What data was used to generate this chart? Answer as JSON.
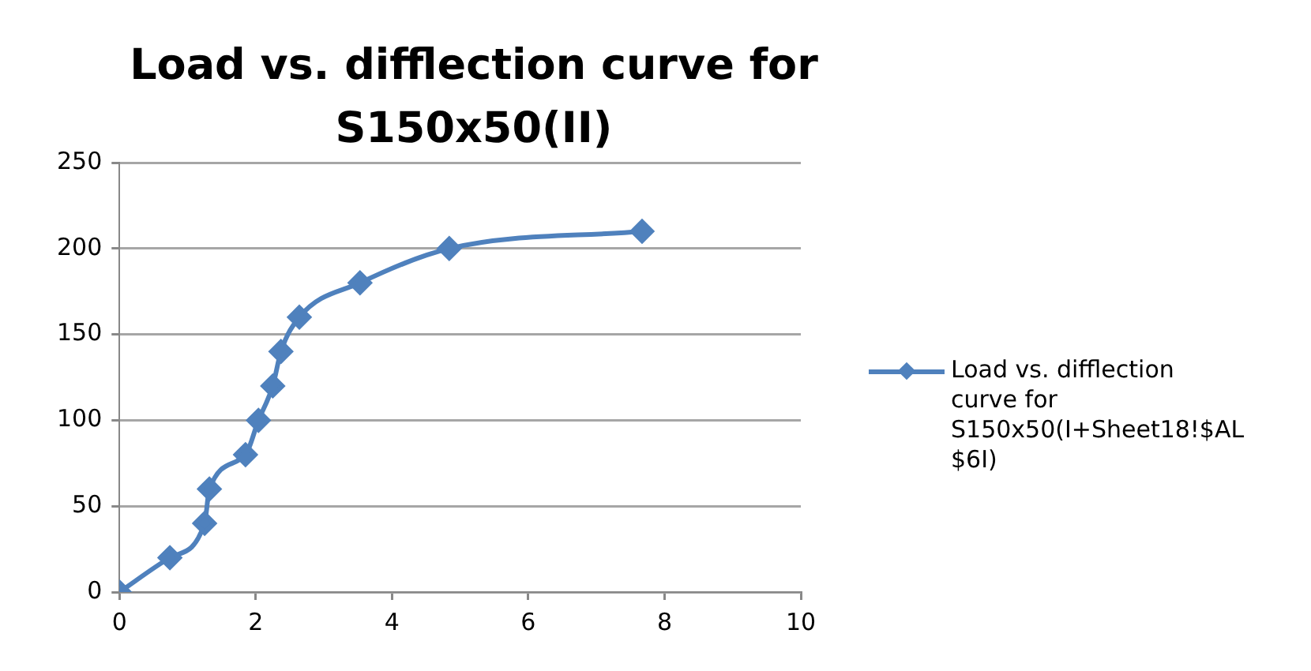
{
  "chart_data": {
    "type": "line",
    "title": "Load vs. difflection curve for S150x50(II)",
    "series": [
      {
        "name": "Load vs. difflection curve for S150x50(I+Sheet18!$AL$6I)",
        "color": "#4f81bd",
        "x": [
          0,
          0.74,
          1.25,
          1.32,
          1.85,
          2.04,
          2.25,
          2.37,
          2.64,
          3.53,
          4.84,
          7.67
        ],
        "values": [
          0,
          20,
          40,
          60,
          80,
          100,
          120,
          140,
          160,
          180,
          200,
          210
        ]
      }
    ],
    "xlim": [
      0,
      10
    ],
    "xticks": [
      0,
      2,
      4,
      6,
      8,
      10
    ],
    "ylim": [
      0,
      250
    ],
    "yticks": [
      0,
      50,
      100,
      150,
      200,
      250
    ],
    "grid": "y",
    "legend": "right",
    "marker": "diamond",
    "line_style": "solid"
  }
}
